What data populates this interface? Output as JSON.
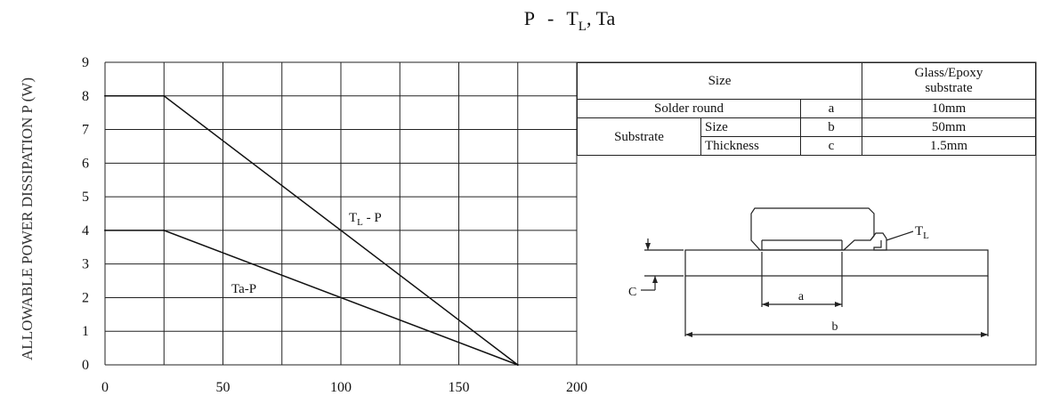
{
  "chart_data": {
    "type": "line",
    "title": "P  -  T_L, Ta",
    "title_parts": {
      "p": "P",
      "dash": "-",
      "t": "T",
      "sub": "L",
      "rest": ", Ta"
    },
    "ylabel": "ALLOWABLE POWER DISSIPATION P (W)",
    "xlabel": "",
    "xlim": [
      0,
      200
    ],
    "ylim": [
      0,
      9
    ],
    "x_ticks": [
      "0",
      "50",
      "100",
      "150",
      "200"
    ],
    "y_ticks": [
      "0",
      "1",
      "2",
      "3",
      "4",
      "5",
      "6",
      "7",
      "8",
      "9"
    ],
    "grid": true,
    "series": [
      {
        "name": "T_L - P",
        "label_main": "T",
        "label_sub": "L",
        "label_rest": " - P",
        "x": [
          0,
          25,
          175
        ],
        "y": [
          8,
          8,
          0
        ]
      },
      {
        "name": "Ta-P",
        "label_main": "Ta-P",
        "label_sub": "",
        "label_rest": "",
        "x": [
          0,
          25,
          175
        ],
        "y": [
          4,
          4,
          0
        ]
      }
    ]
  },
  "table": {
    "size_header": "Size",
    "glass_header_line1": "Glass/Epoxy",
    "glass_header_line2": "substrate",
    "rows": [
      {
        "label": "Solder round",
        "symbol": "a",
        "value": "10mm"
      },
      {
        "group": "Substrate",
        "label": "Size",
        "symbol": "b",
        "value": "50mm"
      },
      {
        "label": "Thickness",
        "symbol": "c",
        "value": "1.5mm"
      }
    ]
  },
  "diagram": {
    "label_a": "a",
    "label_b": "b",
    "label_c": "C",
    "label_tl_main": "T",
    "label_tl_sub": "L"
  }
}
